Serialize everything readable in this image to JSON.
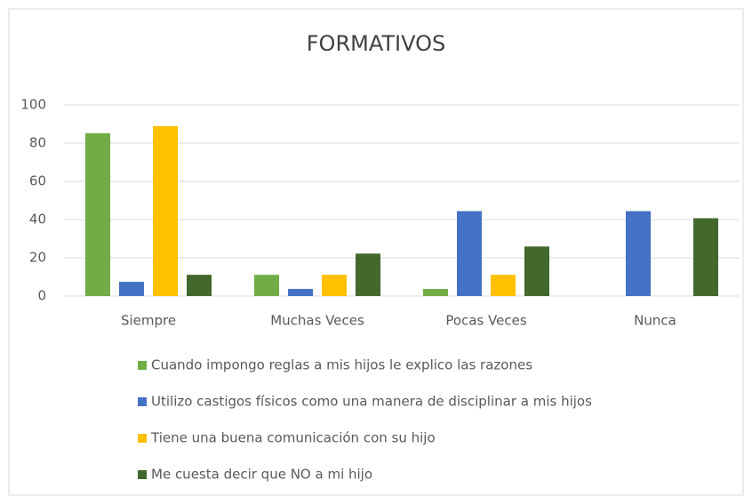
{
  "chart_data": {
    "type": "bar",
    "title": "FORMATIVOS",
    "categories": [
      "Siempre",
      "Muchas Veces",
      "Pocas Veces",
      "Nunca"
    ],
    "series": [
      {
        "name": "Cuando impongo reglas a mis hijos le explico las razones",
        "color": "#70ad47",
        "values": [
          85.2,
          11.1,
          3.7,
          0
        ]
      },
      {
        "name": "Utilizo castigos físicos como una manera de disciplinar a mis hijos",
        "color": "#4472c4",
        "values": [
          7.4,
          3.7,
          44.4,
          44.4
        ]
      },
      {
        "name": "Tiene una buena comunicación con su hijo",
        "color": "#ffc000",
        "values": [
          88.9,
          11.1,
          11.1,
          0
        ]
      },
      {
        "name": "Me cuesta decir que NO a mi hijo",
        "color": "#43682b",
        "values": [
          11.1,
          22.2,
          25.9,
          40.7
        ]
      }
    ],
    "ylim": [
      0,
      100
    ],
    "yticks": [
      0,
      20,
      40,
      60,
      80,
      100
    ],
    "grid": true,
    "legend": "bottom"
  }
}
